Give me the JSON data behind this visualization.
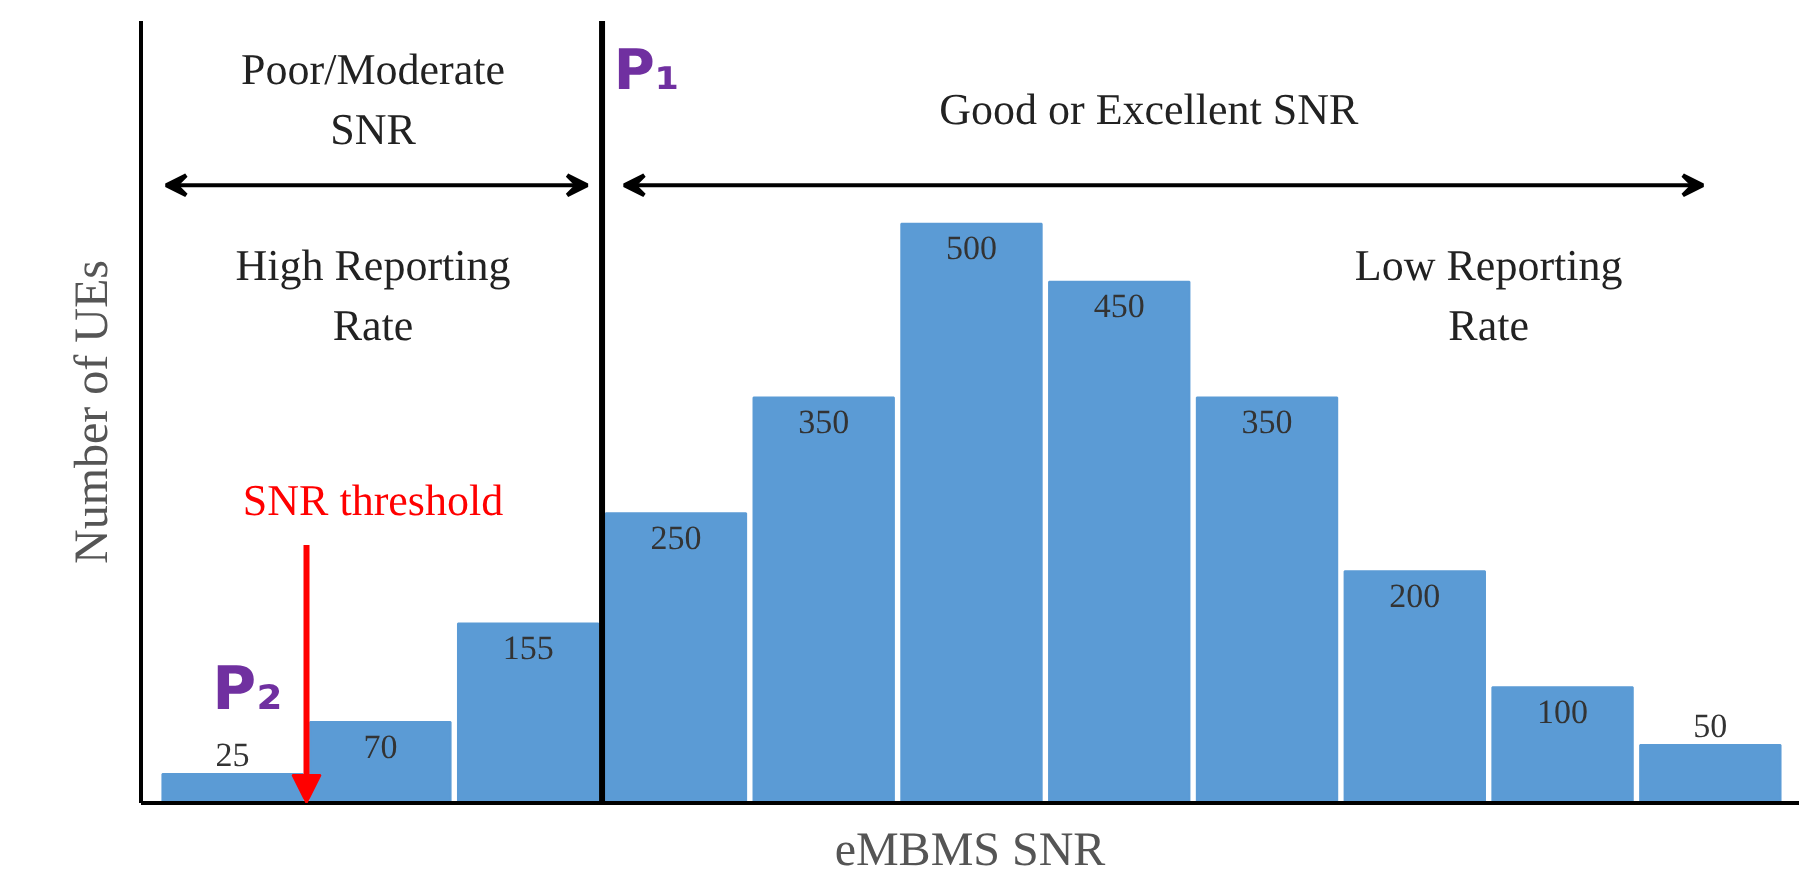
{
  "chart_data": {
    "type": "bar",
    "xlabel": "eMBMS SNR",
    "ylabel": "Number of UEs",
    "categories": [
      null,
      null,
      null,
      null,
      null,
      null,
      null,
      null,
      null,
      null,
      null
    ],
    "values": [
      25,
      70,
      155,
      250,
      350,
      500,
      450,
      350,
      200,
      100,
      50
    ],
    "color": "#5b9bd5",
    "data_labels": true,
    "tick_labels": false,
    "grid": false,
    "annotations": [
      "Poor/Moderate SNR",
      "High Reporting Rate",
      "Good or Excellent SNR",
      "Low Reporting Rate",
      "SNR threshold",
      "P₂",
      "P₁"
    ]
  }
}
